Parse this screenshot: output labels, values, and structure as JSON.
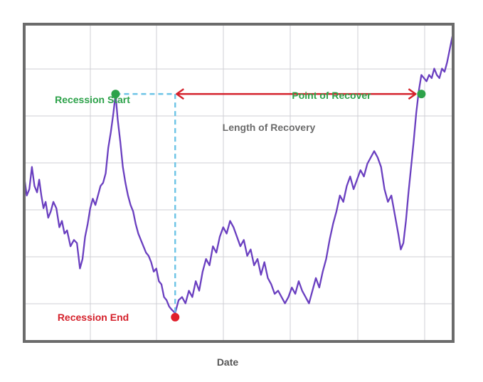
{
  "chart_data": {
    "type": "line",
    "title": "",
    "xlabel": "Date",
    "ylabel": "",
    "grid": true,
    "legend": "none",
    "x_tick_labels": [],
    "y_tick_labels": [],
    "xlim": [
      0,
      100
    ],
    "ylim": [
      0,
      100
    ],
    "series": [
      {
        "color": "#6a3fc0",
        "points": [
          [
            0,
            52
          ],
          [
            0.6,
            46
          ],
          [
            1.2,
            48
          ],
          [
            1.8,
            55
          ],
          [
            2.4,
            49
          ],
          [
            3,
            47
          ],
          [
            3.5,
            51
          ],
          [
            4,
            46
          ],
          [
            4.5,
            42
          ],
          [
            5,
            44
          ],
          [
            5.6,
            39
          ],
          [
            6.2,
            41
          ],
          [
            6.8,
            44
          ],
          [
            7.5,
            42
          ],
          [
            8.2,
            36
          ],
          [
            8.8,
            38
          ],
          [
            9.4,
            34
          ],
          [
            10,
            35
          ],
          [
            10.8,
            30
          ],
          [
            11.6,
            32
          ],
          [
            12.3,
            31
          ],
          [
            13,
            23
          ],
          [
            13.6,
            26
          ],
          [
            14.2,
            33
          ],
          [
            14.8,
            37
          ],
          [
            15.4,
            42
          ],
          [
            16,
            45
          ],
          [
            16.6,
            43
          ],
          [
            17.2,
            46
          ],
          [
            17.8,
            49
          ],
          [
            18.4,
            50
          ],
          [
            19,
            53
          ],
          [
            19.6,
            61
          ],
          [
            20.2,
            66
          ],
          [
            20.8,
            72
          ],
          [
            21.3,
            78
          ],
          [
            21.8,
            70
          ],
          [
            22.4,
            63
          ],
          [
            23,
            55
          ],
          [
            23.6,
            50
          ],
          [
            24.2,
            46
          ],
          [
            24.8,
            43
          ],
          [
            25.4,
            41
          ],
          [
            26,
            37
          ],
          [
            26.6,
            34
          ],
          [
            27.2,
            32
          ],
          [
            27.8,
            30
          ],
          [
            28.4,
            28
          ],
          [
            29,
            27
          ],
          [
            29.6,
            25
          ],
          [
            30.2,
            22
          ],
          [
            30.8,
            23
          ],
          [
            31.4,
            19
          ],
          [
            32,
            18
          ],
          [
            32.6,
            14
          ],
          [
            33.2,
            13
          ],
          [
            33.8,
            11
          ],
          [
            34.4,
            10
          ],
          [
            35.2,
            9
          ],
          [
            36,
            13
          ],
          [
            36.8,
            14
          ],
          [
            37.6,
            12
          ],
          [
            38.4,
            16
          ],
          [
            39.2,
            14
          ],
          [
            40,
            19
          ],
          [
            40.8,
            16
          ],
          [
            41.6,
            22
          ],
          [
            42.4,
            26
          ],
          [
            43.2,
            24
          ],
          [
            44,
            30
          ],
          [
            44.8,
            28
          ],
          [
            45.6,
            33
          ],
          [
            46.4,
            36
          ],
          [
            47.2,
            34
          ],
          [
            48,
            38
          ],
          [
            48.8,
            36
          ],
          [
            49.6,
            33
          ],
          [
            50.4,
            30
          ],
          [
            51.2,
            32
          ],
          [
            52,
            27
          ],
          [
            52.8,
            29
          ],
          [
            53.6,
            24
          ],
          [
            54.4,
            26
          ],
          [
            55.2,
            21
          ],
          [
            56,
            25
          ],
          [
            56.8,
            20
          ],
          [
            57.6,
            18
          ],
          [
            58.4,
            15
          ],
          [
            59.2,
            16
          ],
          [
            60,
            14
          ],
          [
            60.8,
            12
          ],
          [
            61.6,
            14
          ],
          [
            62.4,
            17
          ],
          [
            63.2,
            15
          ],
          [
            64,
            19
          ],
          [
            64.8,
            16
          ],
          [
            65.6,
            14
          ],
          [
            66.4,
            12
          ],
          [
            67.2,
            16
          ],
          [
            68,
            20
          ],
          [
            68.8,
            17
          ],
          [
            69.6,
            22
          ],
          [
            70.4,
            26
          ],
          [
            71.2,
            32
          ],
          [
            72,
            37
          ],
          [
            72.8,
            41
          ],
          [
            73.6,
            46
          ],
          [
            74.4,
            44
          ],
          [
            75.2,
            49
          ],
          [
            76,
            52
          ],
          [
            76.8,
            48
          ],
          [
            77.6,
            51
          ],
          [
            78.4,
            54
          ],
          [
            79.2,
            52
          ],
          [
            80,
            56
          ],
          [
            80.8,
            58
          ],
          [
            81.6,
            60
          ],
          [
            82.4,
            58
          ],
          [
            83.2,
            55
          ],
          [
            84,
            48
          ],
          [
            84.8,
            44
          ],
          [
            85.6,
            46
          ],
          [
            86.4,
            40
          ],
          [
            87.2,
            34
          ],
          [
            87.8,
            29
          ],
          [
            88.4,
            31
          ],
          [
            89,
            38
          ],
          [
            89.6,
            47
          ],
          [
            90.2,
            55
          ],
          [
            90.8,
            63
          ],
          [
            91.4,
            72
          ],
          [
            92,
            79
          ],
          [
            92.6,
            84
          ],
          [
            93.2,
            83
          ],
          [
            93.8,
            82
          ],
          [
            94.4,
            84
          ],
          [
            95,
            83
          ],
          [
            95.6,
            86
          ],
          [
            96.2,
            84
          ],
          [
            96.8,
            83
          ],
          [
            97.4,
            86
          ],
          [
            98,
            85
          ],
          [
            98.6,
            88
          ],
          [
            99.2,
            92
          ],
          [
            99.8,
            96
          ],
          [
            100,
            97
          ]
        ]
      }
    ],
    "markers": [
      {
        "name": "recession-start",
        "x": 21.3,
        "y": 78,
        "color": "#2da24a"
      },
      {
        "name": "recession-end",
        "x": 35.2,
        "y": 9,
        "color": "#e01f2b"
      },
      {
        "name": "point-of-recover",
        "x": 92.6,
        "y": 78,
        "color": "#2da24a"
      }
    ],
    "annotations": {
      "recession_start": {
        "text": "Recession Start",
        "color": "#2da24a"
      },
      "recession_end": {
        "text": "Recession End",
        "color": "#d5222c"
      },
      "point_of_recover": {
        "text": "Point of Recover",
        "color": "#2da24a"
      },
      "length_of_recovery": {
        "text": "Length of Recovery",
        "color": "#6b6b6b"
      }
    },
    "colors": {
      "frame": "#6b6b6b",
      "grid": "#cfcfd4",
      "line": "#6a3fc0",
      "arrow": "#d5222c",
      "dashed": "#6cc4e6"
    }
  }
}
